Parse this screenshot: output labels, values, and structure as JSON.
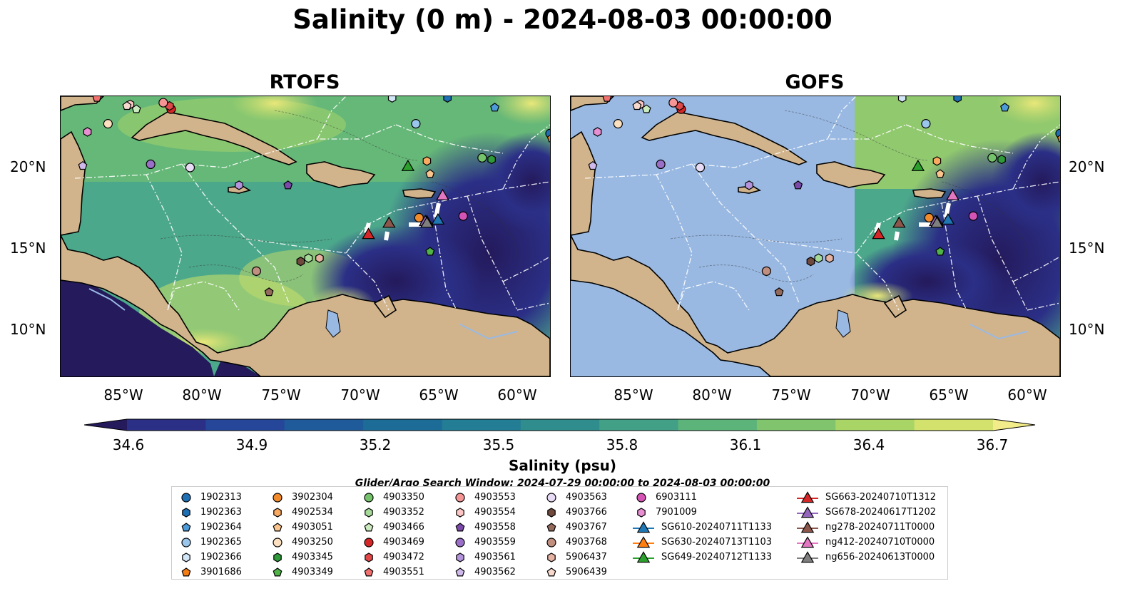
{
  "title": "Salinity (0 m) - 2024-08-03 00:00:00",
  "panels": [
    {
      "name": "RTOFS"
    },
    {
      "name": "GOFS"
    }
  ],
  "lat_labels": [
    "20°N",
    "15°N",
    "10°N"
  ],
  "lon_labels": [
    "85°W",
    "80°W",
    "75°W",
    "70°W",
    "65°W",
    "60°W"
  ],
  "colorbar": {
    "ticks": [
      "34.6",
      "34.9",
      "35.2",
      "35.5",
      "35.8",
      "36.1",
      "36.4",
      "36.7"
    ],
    "label": "Salinity (psu)",
    "vmin": 34.6,
    "vmax": 36.7,
    "colors": [
      "#241a5c",
      "#2b2f86",
      "#26469a",
      "#1f5a9b",
      "#1d6c98",
      "#237d94",
      "#2f8d8e",
      "#41a085",
      "#5cb47b",
      "#80c56d",
      "#a9d566",
      "#d2e26d",
      "#f3ec8b"
    ]
  },
  "search_window": "Glider/Argo Search Window: 2024-07-29 00:00:00 to 2024-08-03 00:00:00",
  "colors": {
    "land": "#d2b48c",
    "gofs_nodata": "#99b9e3",
    "sea_deep_low": "#26206a",
    "sea_mid": "#4ca88a",
    "sea_high": "#c7dc6a"
  },
  "legend": {
    "columns": [
      [
        {
          "label": "1902313",
          "marker": "circle",
          "color": "#1f6fb4"
        },
        {
          "label": "1902363",
          "marker": "hexagon",
          "color": "#1f6fb4"
        },
        {
          "label": "1902364",
          "marker": "pentagon",
          "color": "#4d9ad8"
        },
        {
          "label": "1902365",
          "marker": "circle",
          "color": "#9ac6ec"
        },
        {
          "label": "1902366",
          "marker": "hexagon",
          "color": "#d2e6f7"
        },
        {
          "label": "3901686",
          "marker": "pentagon",
          "color": "#f57c12"
        }
      ],
      [
        {
          "label": "3902304",
          "marker": "circle",
          "color": "#f08a2a"
        },
        {
          "label": "4902534",
          "marker": "hexagon",
          "color": "#f9a960"
        },
        {
          "label": "4903051",
          "marker": "pentagon",
          "color": "#fcc58e"
        },
        {
          "label": "4903250",
          "marker": "circle",
          "color": "#fde0c0"
        },
        {
          "label": "4903345",
          "marker": "hexagon",
          "color": "#2e9a3a"
        },
        {
          "label": "4903349",
          "marker": "pentagon",
          "color": "#4fb348"
        }
      ],
      [
        {
          "label": "4903350",
          "marker": "circle",
          "color": "#74c26a"
        },
        {
          "label": "4903352",
          "marker": "hexagon",
          "color": "#a6da99"
        },
        {
          "label": "4903466",
          "marker": "pentagon",
          "color": "#ccecc0"
        },
        {
          "label": "4903469",
          "marker": "circle",
          "color": "#d62728"
        },
        {
          "label": "4903472",
          "marker": "hexagon",
          "color": "#e0484a"
        },
        {
          "label": "4903551",
          "marker": "pentagon",
          "color": "#f07070"
        }
      ],
      [
        {
          "label": "4903553",
          "marker": "circle",
          "color": "#f59595"
        },
        {
          "label": "4903554",
          "marker": "hexagon",
          "color": "#fbc6c4"
        },
        {
          "label": "4903558",
          "marker": "pentagon",
          "color": "#7b4aa8"
        },
        {
          "label": "4903559",
          "marker": "circle",
          "color": "#9a6fc7"
        },
        {
          "label": "4903561",
          "marker": "hexagon",
          "color": "#b494da"
        },
        {
          "label": "4903562",
          "marker": "pentagon",
          "color": "#cfb8ea"
        }
      ],
      [
        {
          "label": "4903563",
          "marker": "circle",
          "color": "#e7dbf5"
        },
        {
          "label": "4903766",
          "marker": "hexagon",
          "color": "#6f4a3d"
        },
        {
          "label": "4903767",
          "marker": "pentagon",
          "color": "#946a5c"
        },
        {
          "label": "4903768",
          "marker": "circle",
          "color": "#c08f80"
        },
        {
          "label": "5906437",
          "marker": "hexagon",
          "color": "#e6b3a3"
        },
        {
          "label": "5906439",
          "marker": "pentagon",
          "color": "#f6d9cc"
        }
      ],
      [
        {
          "label": "6903111",
          "marker": "circle",
          "color": "#d454b6"
        },
        {
          "label": "7901009",
          "marker": "hexagon",
          "color": "#e78fd2"
        },
        {
          "label": "SG610-20240711T1133",
          "marker": "triangle-line",
          "color": "#1f77b4"
        },
        {
          "label": "SG630-20240713T1103",
          "marker": "triangle-line",
          "color": "#ff7f0e"
        },
        {
          "label": "SG649-20240712T1133",
          "marker": "triangle-line",
          "color": "#2ca02c"
        }
      ],
      [
        {
          "label": "SG663-20240710T1312",
          "marker": "triangle-line",
          "color": "#d62728"
        },
        {
          "label": "SG678-20240617T1202",
          "marker": "triangle-line",
          "color": "#9467bd"
        },
        {
          "label": "ng278-20240711T0000",
          "marker": "triangle-line",
          "color": "#8c564b"
        },
        {
          "label": "ng412-20240710T0000",
          "marker": "triangle-line",
          "color": "#e377c2"
        },
        {
          "label": "ng656-20240613T0000",
          "marker": "triangle-line",
          "color": "#7f7f7f"
        }
      ]
    ]
  },
  "markers": [
    {
      "label": "1902313",
      "marker": "circle",
      "color": "#1f6fb4",
      "lon": -58.0,
      "lat": 22.0
    },
    {
      "label": "1902363",
      "marker": "hexagon",
      "color": "#1f6fb4",
      "lon": -64.5,
      "lat": 24.2
    },
    {
      "label": "1902364",
      "marker": "pentagon",
      "color": "#4d9ad8",
      "lon": -61.5,
      "lat": 23.6
    },
    {
      "label": "1902365",
      "marker": "circle",
      "color": "#9ac6ec",
      "lon": -66.5,
      "lat": 22.6
    },
    {
      "label": "1902366",
      "marker": "hexagon",
      "color": "#d2e6f7",
      "lon": -68.0,
      "lat": 24.2
    },
    {
      "label": "3901686",
      "marker": "pentagon",
      "color": "#f57c12",
      "lon": -57.9,
      "lat": 21.7
    },
    {
      "label": "3902304",
      "marker": "circle",
      "color": "#f08a2a",
      "lon": -66.3,
      "lat": 16.8
    },
    {
      "label": "4902534",
      "marker": "hexagon",
      "color": "#f9a960",
      "lon": -65.8,
      "lat": 20.3
    },
    {
      "label": "4903051",
      "marker": "pentagon",
      "color": "#fcc58e",
      "lon": -65.6,
      "lat": 19.5
    },
    {
      "label": "4903250",
      "marker": "circle",
      "color": "#fde0c0",
      "lon": -86.0,
      "lat": 22.6
    },
    {
      "label": "4903345",
      "marker": "hexagon",
      "color": "#2e9a3a",
      "lon": -61.7,
      "lat": 20.4
    },
    {
      "label": "4903349",
      "marker": "pentagon",
      "color": "#4fb348",
      "lon": -65.6,
      "lat": 14.7
    },
    {
      "label": "4903350",
      "marker": "circle",
      "color": "#74c26a",
      "lon": -62.3,
      "lat": 20.5
    },
    {
      "label": "4903352",
      "marker": "hexagon",
      "color": "#a6da99",
      "lon": -73.3,
      "lat": 14.3
    },
    {
      "label": "4903466",
      "marker": "pentagon",
      "color": "#ccecc0",
      "lon": -84.2,
      "lat": 23.5
    },
    {
      "label": "4903469",
      "marker": "circle",
      "color": "#d62728",
      "lon": -82.0,
      "lat": 23.5
    },
    {
      "label": "4903472",
      "marker": "hexagon",
      "color": "#e0484a",
      "lon": -82.1,
      "lat": 23.7
    },
    {
      "label": "4903551",
      "marker": "pentagon",
      "color": "#f07070",
      "lon": -86.7,
      "lat": 24.2
    },
    {
      "label": "4903553",
      "marker": "circle",
      "color": "#f59595",
      "lon": -82.5,
      "lat": 23.9
    },
    {
      "label": "4903554",
      "marker": "hexagon",
      "color": "#fbc6c4",
      "lon": -84.6,
      "lat": 23.8
    },
    {
      "label": "4903558",
      "marker": "pentagon",
      "color": "#7b4aa8",
      "lon": -74.6,
      "lat": 18.8
    },
    {
      "label": "4903559",
      "marker": "circle",
      "color": "#9a6fc7",
      "lon": -83.3,
      "lat": 20.1
    },
    {
      "label": "4903561",
      "marker": "hexagon",
      "color": "#b494da",
      "lon": -77.7,
      "lat": 18.8
    },
    {
      "label": "4903562",
      "marker": "pentagon",
      "color": "#cfb8ea",
      "lon": -87.6,
      "lat": 20.0
    },
    {
      "label": "4903563",
      "marker": "circle",
      "color": "#e7dbf5",
      "lon": -80.8,
      "lat": 19.9
    },
    {
      "label": "4903766",
      "marker": "hexagon",
      "color": "#6f4a3d",
      "lon": -73.8,
      "lat": 14.1
    },
    {
      "label": "4903767",
      "marker": "pentagon",
      "color": "#946a5c",
      "lon": -75.8,
      "lat": 12.2
    },
    {
      "label": "4903768",
      "marker": "circle",
      "color": "#c08f80",
      "lon": -76.6,
      "lat": 13.5
    },
    {
      "label": "5906437",
      "marker": "hexagon",
      "color": "#e6b3a3",
      "lon": -72.6,
      "lat": 14.3
    },
    {
      "label": "5906439",
      "marker": "pentagon",
      "color": "#f6d9cc",
      "lon": -84.8,
      "lat": 23.7
    },
    {
      "label": "6903111",
      "marker": "circle",
      "color": "#d454b6",
      "lon": -63.5,
      "lat": 16.9
    },
    {
      "label": "7901009",
      "marker": "hexagon",
      "color": "#e78fd2",
      "lon": -87.3,
      "lat": 22.1
    },
    {
      "label": "SG610-20240711T1133",
      "marker": "triangle",
      "color": "#1f77b4",
      "lon": -65.1,
      "lat": 16.7
    },
    {
      "label": "SG630-20240713T1103",
      "marker": "triangle",
      "color": "#ff7f0e",
      "lon": -65.8,
      "lat": 16.6
    },
    {
      "label": "SG649-20240712T1133",
      "marker": "triangle",
      "color": "#2ca02c",
      "lon": -67.0,
      "lat": 20.0
    },
    {
      "label": "SG663-20240710T1312",
      "marker": "triangle",
      "color": "#d62728",
      "lon": -69.5,
      "lat": 15.8
    },
    {
      "label": "SG678-20240617T1202",
      "marker": "triangle",
      "color": "#9467bd",
      "lon": -65.9,
      "lat": 16.6
    },
    {
      "label": "ng278-20240711T0000",
      "marker": "triangle",
      "color": "#8c564b",
      "lon": -68.2,
      "lat": 16.5
    },
    {
      "label": "ng412-20240710T0000",
      "marker": "triangle",
      "color": "#e377c2",
      "lon": -64.8,
      "lat": 18.2
    },
    {
      "label": "ng656-20240613T0000",
      "marker": "triangle",
      "color": "#7f7f7f",
      "lon": -65.8,
      "lat": 16.5
    }
  ]
}
